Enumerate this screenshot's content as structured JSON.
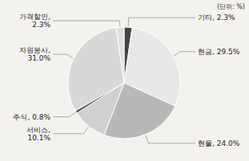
{
  "chart_data": {
    "type": "pie",
    "categories": [
      "기타, 2.3%",
      "현금, 29.5%",
      "현물, 24.0%",
      "서비스,\n10.1%",
      "주식, 0.8%",
      "자원봉사,\n31.0%",
      "가격할인,\n2.3%"
    ],
    "values": [
      2.3,
      29.5,
      24.0,
      10.1,
      0.8,
      31.0,
      2.3
    ],
    "colors": [
      "#444444",
      "#e8e8e8",
      "#b8b8b8",
      "#d0d0d0",
      "#555555",
      "#d8d8d8",
      "#e0e0e0"
    ],
    "annotations": [
      "(단위: %)"
    ]
  }
}
